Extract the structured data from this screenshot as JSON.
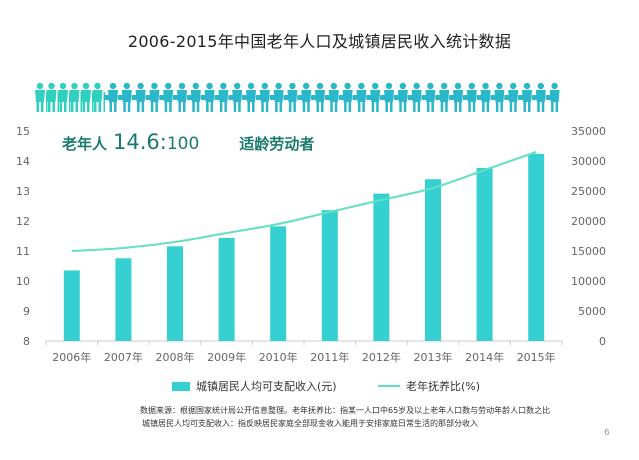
{
  "title": "2006-2015年中国老年人口及城镇居民收入统计数据",
  "ratio": {
    "label": "老年人",
    "value": "14.6:",
    "per": "100",
    "desc": "适龄劳动者"
  },
  "icons": {
    "elderly_count": 6,
    "worker_count": 36,
    "elderly_color": "#2fd0bd",
    "worker_color": "#2ab7c9"
  },
  "legend": {
    "bar": "城镇居民人均可支配收入(元)",
    "line": "老年抚养比(%)"
  },
  "notes": {
    "line1": "数据来源：根据国家统计局公开信息整理。老年抚养比：指某一人口中65岁及以上老年人口数与劳动年龄人口数之比",
    "line2": "城镇居民人均可支配收入：指反映居民家庭全部现金收入能用于安排家庭日常生活的那部分收入"
  },
  "page_number": "6",
  "colors": {
    "bar": "#35d0d2",
    "line": "#63e0bf",
    "axis": "#cccccc"
  },
  "chart_data": {
    "type": "bar",
    "categories": [
      "2006年",
      "2007年",
      "2008年",
      "2009年",
      "2010年",
      "2011年",
      "2012年",
      "2013年",
      "2014年",
      "2015年"
    ],
    "series": [
      {
        "name": "城镇居民人均可支配收入(元)",
        "type": "bar",
        "axis": "right",
        "values": [
          11759,
          13786,
          15781,
          17175,
          19109,
          21810,
          24565,
          26955,
          28844,
          31195
        ]
      },
      {
        "name": "老年抚养比(%)",
        "type": "line",
        "axis": "left",
        "values": [
          11.0,
          11.1,
          11.3,
          11.6,
          11.9,
          12.3,
          12.7,
          13.1,
          13.7,
          14.3
        ]
      }
    ],
    "left_axis": {
      "ylim": [
        8,
        15
      ],
      "ticks": [
        8,
        9,
        10,
        11,
        12,
        13,
        14,
        15
      ]
    },
    "right_axis": {
      "ylim": [
        0,
        35000
      ],
      "ticks": [
        0,
        5000,
        10000,
        15000,
        20000,
        25000,
        30000,
        35000
      ]
    },
    "grid": false,
    "legend_position": "bottom"
  }
}
